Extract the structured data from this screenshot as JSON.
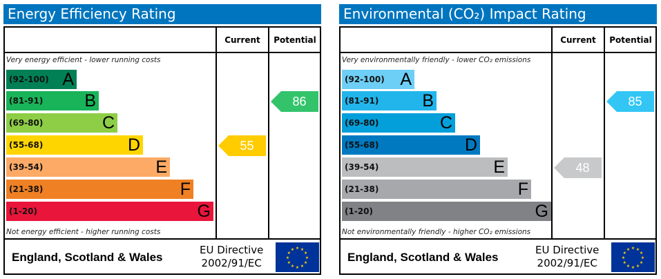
{
  "chart_data": [
    {
      "type": "bar",
      "title": "Energy Efficiency Rating",
      "headers": {
        "current": "Current",
        "potential": "Potential"
      },
      "top_note": "Very energy efficient - lower running costs",
      "bottom_note": "Not energy efficient - higher running costs",
      "bands": [
        {
          "range": "(92-100)",
          "letter": "A",
          "color": "#008054"
        },
        {
          "range": "(81-91)",
          "letter": "B",
          "color": "#19b459"
        },
        {
          "range": "(69-80)",
          "letter": "C",
          "color": "#8dce46"
        },
        {
          "range": "(55-68)",
          "letter": "D",
          "color": "#ffd500"
        },
        {
          "range": "(39-54)",
          "letter": "E",
          "color": "#fcaa65"
        },
        {
          "range": "(21-38)",
          "letter": "F",
          "color": "#ef8023"
        },
        {
          "range": "(1-20)",
          "letter": "G",
          "color": "#e9153b"
        }
      ],
      "current": {
        "value": "55",
        "band": "D",
        "color": "#ffcc00"
      },
      "potential": {
        "value": "86",
        "band": "B",
        "color": "#33c36b"
      },
      "region": "England, Scotland & Wales",
      "directive": [
        "EU Directive",
        "2002/91/EC"
      ]
    },
    {
      "type": "bar",
      "title": "Environmental (CO₂) Impact Rating",
      "headers": {
        "current": "Current",
        "potential": "Potential"
      },
      "top_note": "Very environmentally friendly - lower CO₂ emissions",
      "bottom_note": "Not environmentally friendly - higher CO₂ emissions",
      "bands": [
        {
          "range": "(92-100)",
          "letter": "A",
          "color": "#6ecff6"
        },
        {
          "range": "(81-91)",
          "letter": "B",
          "color": "#22b5eb"
        },
        {
          "range": "(69-80)",
          "letter": "C",
          "color": "#039fdb"
        },
        {
          "range": "(55-68)",
          "letter": "D",
          "color": "#0079c1"
        },
        {
          "range": "(39-54)",
          "letter": "E",
          "color": "#bbbdbf"
        },
        {
          "range": "(21-38)",
          "letter": "F",
          "color": "#a6a8ab"
        },
        {
          "range": "(1-20)",
          "letter": "G",
          "color": "#808285"
        }
      ],
      "current": {
        "value": "48",
        "band": "E",
        "color": "#c8c9cb"
      },
      "potential": {
        "value": "85",
        "band": "B",
        "color": "#33c6f4"
      },
      "region": "England, Scotland & Wales",
      "directive": [
        "EU Directive",
        "2002/91/EC"
      ]
    }
  ]
}
